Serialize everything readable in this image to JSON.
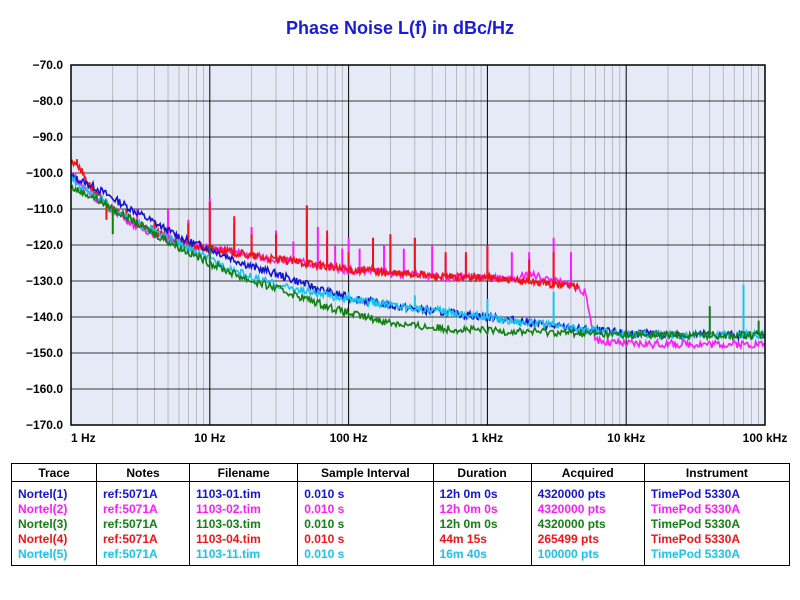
{
  "chart_title": "Phase Noise L(f) in dBc/Hz",
  "legend": {
    "headers": [
      "Trace",
      "Notes",
      "Filename",
      "Sample Interval",
      "Duration",
      "Acquired",
      "Instrument"
    ],
    "rows": [
      [
        "Nortel(1)",
        "ref:5071A",
        "1103-01.tim",
        "0.010 s",
        "12h 0m 0s",
        "4320000 pts",
        "TimePod 5330A"
      ],
      [
        "Nortel(2)",
        "ref:5071A",
        "1103-02.tim",
        "0.010 s",
        "12h 0m 0s",
        "4320000 pts",
        "TimePod 5330A"
      ],
      [
        "Nortel(3)",
        "ref:5071A",
        "1103-03.tim",
        "0.010 s",
        "12h 0m 0s",
        "4320000 pts",
        "TimePod 5330A"
      ],
      [
        "Nortel(4)",
        "ref:5071A",
        "1103-04.tim",
        "0.010 s",
        "44m 15s",
        "265499 pts",
        "TimePod 5330A"
      ],
      [
        "Nortel(5)",
        "ref:5071A",
        "1103-11.tim",
        "0.010 s",
        "16m 40s",
        "100000 pts",
        "TimePod 5330A"
      ]
    ]
  },
  "chart_data": {
    "type": "line",
    "title": "Phase Noise L(f) in dBc/Hz",
    "xscale": "log",
    "xlim": [
      1,
      100000
    ],
    "ylim": [
      -170,
      -70
    ],
    "grid": true,
    "x_tick_labels": [
      "1 Hz",
      "10 Hz",
      "100 Hz",
      "1 kHz",
      "10 kHz",
      "100 kHz"
    ],
    "y_tick_labels": [
      "-70.0",
      "-80.0",
      "-90.0",
      "-100.0",
      "-110.0",
      "-120.0",
      "-130.0",
      "-140.0",
      "-150.0",
      "-160.0",
      "-170.0"
    ],
    "series": [
      {
        "name": "Nortel(1)",
        "color": "#1414d4",
        "x": [
          1,
          1.5,
          2,
          3,
          5,
          7,
          10,
          15,
          20,
          30,
          50,
          70,
          100,
          150,
          200,
          300,
          500,
          700,
          1000,
          1500,
          2000,
          3000,
          5000,
          7000,
          10000,
          20000,
          50000,
          100000
        ],
        "y": [
          -101,
          -104,
          -107,
          -111,
          -116,
          -119,
          -121,
          -124,
          -126,
          -128,
          -131,
          -133,
          -134.5,
          -135.8,
          -136.8,
          -137.8,
          -138.8,
          -139.4,
          -140,
          -140.8,
          -141.5,
          -142.5,
          -143.5,
          -144,
          -144.5,
          -144.8,
          -145,
          -145
        ],
        "spikes": []
      },
      {
        "name": "Nortel(2)",
        "color": "#ff19ff",
        "x": [
          1,
          1.3,
          2,
          3,
          5,
          7,
          10,
          15,
          20,
          30,
          50,
          70,
          100,
          150,
          200,
          300,
          500,
          700,
          1000,
          1500,
          2000,
          3000,
          4000,
          5000,
          6000,
          7000,
          10000,
          20000,
          50000,
          100000
        ],
        "y": [
          -100,
          -105,
          -110,
          -115,
          -118,
          -120,
          -121,
          -122,
          -123,
          -124,
          -125,
          -126,
          -127,
          -127,
          -128,
          -128,
          -129,
          -129,
          -129,
          -130,
          -128,
          -130,
          -131,
          -133,
          -146,
          -147,
          -147.5,
          -147.5,
          -147.5,
          -147.5
        ],
        "spikes": [
          [
            1.5,
            -108
          ],
          [
            3,
            -110
          ],
          [
            5,
            -110
          ],
          [
            7,
            -113
          ],
          [
            10,
            -107
          ],
          [
            15,
            -114
          ],
          [
            20,
            -115
          ],
          [
            30,
            -116
          ],
          [
            40,
            -119
          ],
          [
            50,
            -109
          ],
          [
            60,
            -115
          ],
          [
            70,
            -118
          ],
          [
            80,
            -120
          ],
          [
            90,
            -121
          ],
          [
            100,
            -118
          ],
          [
            120,
            -121
          ],
          [
            150,
            -118
          ],
          [
            180,
            -120
          ],
          [
            200,
            -120
          ],
          [
            250,
            -121
          ],
          [
            300,
            -118
          ],
          [
            400,
            -120
          ],
          [
            500,
            -123
          ],
          [
            700,
            -123
          ],
          [
            1000,
            -120
          ],
          [
            1500,
            -122
          ],
          [
            2000,
            -122
          ],
          [
            3000,
            -118
          ],
          [
            4000,
            -122
          ]
        ]
      },
      {
        "name": "Nortel(3)",
        "color": "#138013",
        "x": [
          1,
          1.5,
          2,
          3,
          5,
          7,
          10,
          15,
          20,
          30,
          50,
          70,
          100,
          150,
          200,
          300,
          500,
          700,
          1000,
          1500,
          2000,
          3000,
          5000,
          7000,
          10000,
          20000,
          50000,
          100000
        ],
        "y": [
          -104,
          -107,
          -110,
          -114,
          -119,
          -122,
          -125,
          -128,
          -130,
          -132,
          -135,
          -137,
          -139,
          -140.5,
          -141.5,
          -142.5,
          -143.2,
          -143.5,
          -143.8,
          -144,
          -144,
          -144.2,
          -144.5,
          -144.8,
          -145,
          -145,
          -145,
          -145
        ],
        "spikes": [
          [
            2,
            -117
          ],
          [
            4,
            -118
          ],
          [
            10,
            -120
          ],
          [
            40000,
            -137
          ],
          [
            90000,
            -141
          ]
        ]
      },
      {
        "name": "Nortel(4)",
        "color": "#f01414",
        "x": [
          1,
          1.1,
          1.3,
          1.5,
          2,
          3,
          5,
          7,
          10,
          15,
          20,
          30,
          50,
          70,
          100,
          150,
          200,
          300,
          500,
          700,
          1000,
          1500,
          2000,
          3000,
          4000,
          4500
        ],
        "y": [
          -97,
          -97,
          -102,
          -106,
          -110,
          -114,
          -118,
          -120,
          -121,
          -122,
          -123,
          -124,
          -125,
          -126,
          -127,
          -127,
          -128,
          -128,
          -129,
          -129,
          -129,
          -130,
          -130,
          -131,
          -131,
          -132
        ],
        "spikes": [
          [
            1.8,
            -113
          ],
          [
            2.5,
            -110
          ],
          [
            4,
            -113
          ],
          [
            7,
            -114
          ],
          [
            10,
            -108
          ],
          [
            15,
            -112
          ],
          [
            20,
            -117
          ],
          [
            30,
            -117
          ],
          [
            50,
            -109
          ],
          [
            70,
            -116
          ],
          [
            100,
            -122
          ],
          [
            150,
            -118
          ],
          [
            200,
            -117
          ],
          [
            300,
            -118
          ],
          [
            500,
            -122
          ],
          [
            700,
            -122
          ],
          [
            1000,
            -120
          ],
          [
            2000,
            -124
          ],
          [
            3000,
            -122
          ]
        ]
      },
      {
        "name": "Nortel(5)",
        "color": "#19c3f0",
        "x": [
          1,
          1.5,
          2,
          3,
          5,
          7,
          10,
          15,
          20,
          30,
          50,
          70,
          100,
          150,
          200,
          300,
          500,
          700,
          1000,
          1500,
          2000,
          3000,
          5000,
          7000,
          10000,
          20000,
          50000,
          100000
        ],
        "y": [
          -102,
          -106,
          -110,
          -114,
          -118,
          -121,
          -124,
          -127,
          -129,
          -131,
          -133,
          -134,
          -135,
          -136,
          -136.5,
          -137.5,
          -138.5,
          -139.3,
          -140,
          -141,
          -141.5,
          -142.5,
          -143.5,
          -144.2,
          -144.8,
          -145,
          -145,
          -145
        ],
        "spikes": [
          [
            40,
            -132
          ],
          [
            60,
            -133
          ],
          [
            100,
            -133
          ],
          [
            300,
            -134
          ],
          [
            1000,
            -135
          ],
          [
            3000,
            -133
          ],
          [
            70000,
            -131
          ]
        ]
      }
    ]
  }
}
